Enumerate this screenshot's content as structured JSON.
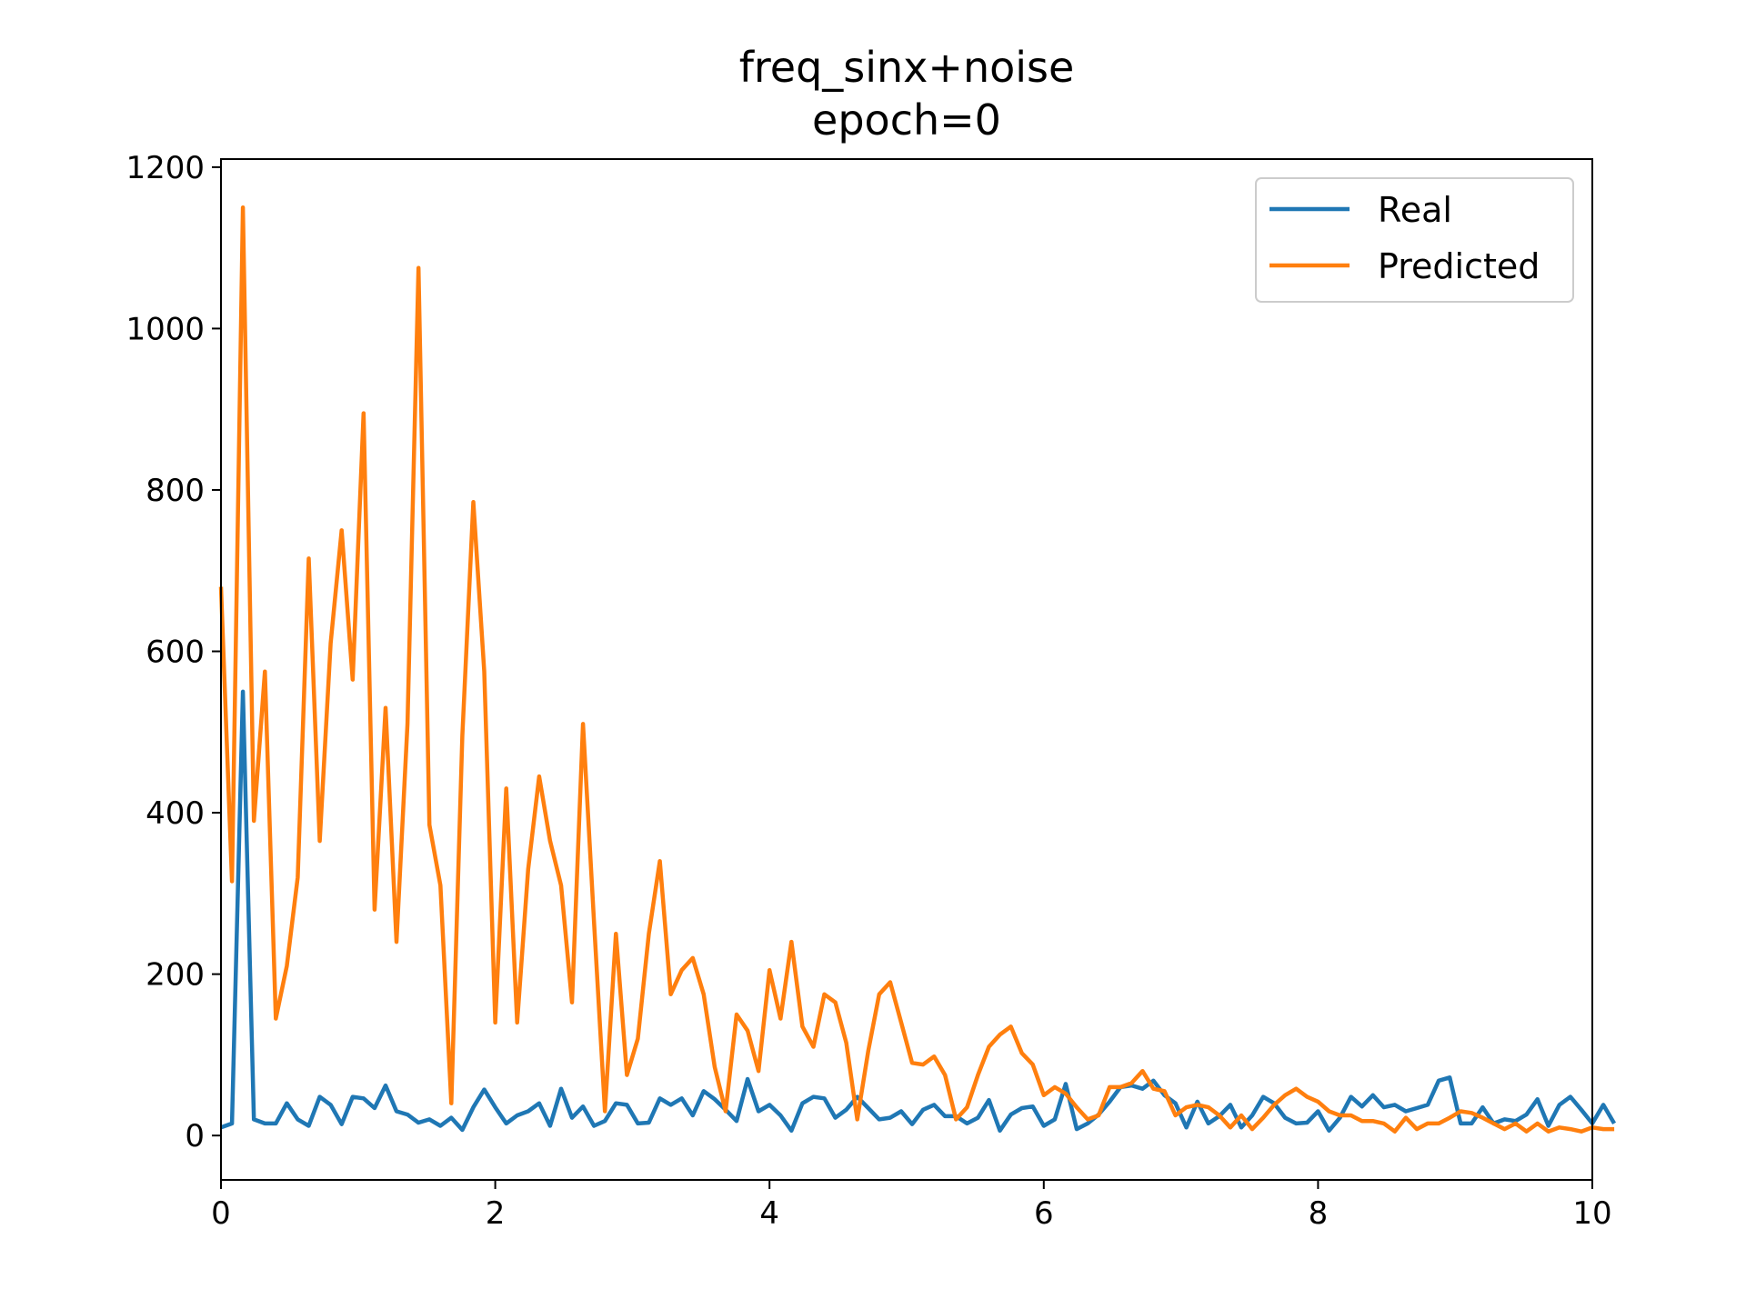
{
  "chart_data": {
    "type": "line",
    "title": "freq_sinx+noise",
    "subtitle": "epoch=0",
    "xlabel": "",
    "ylabel": "",
    "xlim": [
      0,
      10
    ],
    "ylim": [
      -55,
      1210
    ],
    "xticks": [
      0,
      2,
      4,
      6,
      8,
      10
    ],
    "yticks": [
      0,
      200,
      400,
      600,
      800,
      1000,
      1200
    ],
    "grid": false,
    "legend": "top-right",
    "x_start": 0,
    "x_step": 0.08,
    "series": [
      {
        "name": "Real",
        "color": "#1f77b4",
        "values": [
          10,
          15,
          550,
          20,
          15,
          15,
          40,
          20,
          12,
          48,
          38,
          14,
          48,
          46,
          34,
          62,
          30,
          26,
          16,
          20,
          12,
          22,
          7,
          35,
          57,
          35,
          15,
          25,
          30,
          40,
          12,
          58,
          22,
          36,
          12,
          18,
          40,
          38,
          15,
          16,
          46,
          38,
          46,
          25,
          55,
          45,
          32,
          18,
          70,
          30,
          38,
          25,
          6,
          40,
          48,
          46,
          22,
          32,
          48,
          34,
          20,
          22,
          30,
          14,
          32,
          38,
          24,
          24,
          15,
          22,
          44,
          6,
          26,
          34,
          36,
          12,
          20,
          64,
          8,
          15,
          26,
          42,
          60,
          62,
          58,
          68,
          50,
          40,
          10,
          42,
          15,
          24,
          38,
          10,
          25,
          48,
          40,
          22,
          15,
          16,
          30,
          6,
          22,
          48,
          36,
          50,
          35,
          38,
          30,
          34,
          38,
          68,
          72,
          15,
          15,
          35,
          15,
          20,
          18,
          26,
          45,
          12,
          38,
          48,
          32,
          15,
          38,
          15
        ]
      },
      {
        "name": "Predicted",
        "color": "#ff7f0e",
        "values": [
          680,
          315,
          1150,
          390,
          575,
          145,
          210,
          320,
          715,
          365,
          610,
          750,
          565,
          895,
          280,
          530,
          240,
          510,
          1075,
          385,
          310,
          40,
          495,
          785,
          575,
          140,
          430,
          140,
          330,
          445,
          365,
          310,
          165,
          510,
          265,
          30,
          250,
          75,
          120,
          250,
          340,
          175,
          205,
          220,
          175,
          85,
          30,
          150,
          130,
          80,
          205,
          145,
          240,
          135,
          110,
          175,
          165,
          115,
          20,
          105,
          175,
          190,
          140,
          90,
          88,
          98,
          75,
          20,
          35,
          75,
          110,
          125,
          135,
          102,
          88,
          50,
          60,
          52,
          35,
          20,
          25,
          60,
          60,
          65,
          80,
          58,
          55,
          25,
          35,
          38,
          35,
          25,
          10,
          25,
          8,
          22,
          38,
          50,
          58,
          48,
          42,
          30,
          25,
          25,
          18,
          18,
          15,
          5,
          22,
          8,
          15,
          15,
          22,
          30,
          28,
          22,
          15,
          8,
          15,
          5,
          15,
          5,
          10,
          8,
          5,
          10,
          8,
          8
        ]
      }
    ]
  }
}
